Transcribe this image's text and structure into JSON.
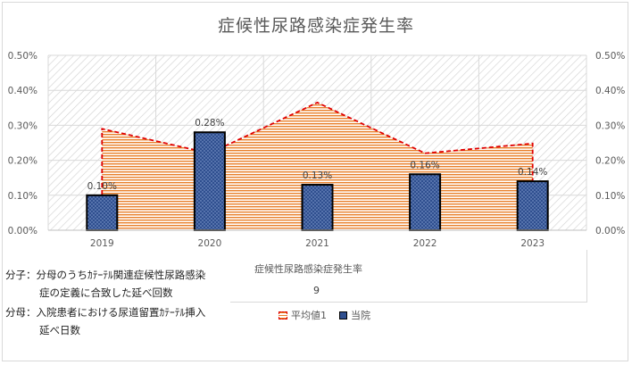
{
  "chart_data": {
    "type": "bar",
    "title": "症候性尿路感染症発生率",
    "categories": [
      "2019",
      "2020",
      "2021",
      "2022",
      "2023"
    ],
    "series": [
      {
        "name": "平均値1",
        "type": "area",
        "values": [
          0.29,
          0.22,
          0.365,
          0.22,
          0.248
        ]
      },
      {
        "name": "当院",
        "type": "bar",
        "values": [
          0.1,
          0.28,
          0.13,
          0.16,
          0.14
        ]
      }
    ],
    "data_labels": [
      "0.10%",
      "0.28%",
      "0.13%",
      "0.16%",
      "0.14%"
    ],
    "y_ticks": [
      "0.00%",
      "0.10%",
      "0.20%",
      "0.30%",
      "0.40%",
      "0.50%"
    ],
    "ylim": [
      0,
      0.5
    ],
    "grid": true,
    "legend_position": "bottom",
    "colors": {
      "bar_fill": "#2f4f8f",
      "bar_border": "#000000",
      "area_line": "#e00000",
      "area_hatch": "#e87f2a"
    }
  },
  "table": {
    "row_label": "症候性尿路感染症発生率",
    "value": "9"
  },
  "notes": {
    "numerator_line1": "分子：分母のうちｶﾃｰﾃﾙ関連症候性尿路感染",
    "numerator_line2": "症の定義に合致した延べ回数",
    "denominator_line1": "分母：入院患者における尿道留置ｶﾃｰﾃﾙ挿入",
    "denominator_line2": "延べ日数"
  }
}
